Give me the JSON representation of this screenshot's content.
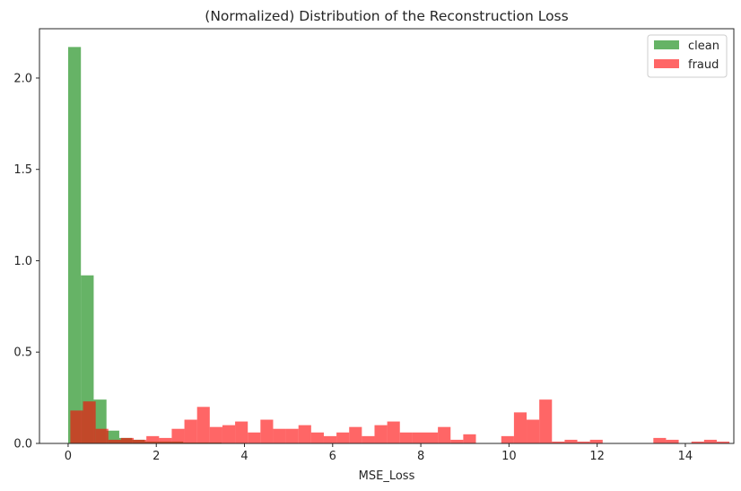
{
  "chart_data": {
    "type": "bar",
    "title": "(Normalized) Distribution of the Reconstruction Loss",
    "xlabel": "MSE_Loss",
    "ylabel": "",
    "xlim": [
      -0.65,
      15.1
    ],
    "ylim": [
      0,
      2.27
    ],
    "xticks": [
      0,
      2,
      4,
      6,
      8,
      10,
      12,
      14
    ],
    "xtick_labels": [
      "0",
      "2",
      "4",
      "6",
      "8",
      "10",
      "12",
      "14"
    ],
    "yticks": [
      0.0,
      0.5,
      1.0,
      1.5,
      2.0
    ],
    "ytick_labels": [
      "0.0",
      "0.5",
      "1.0",
      "1.5",
      "2.0"
    ],
    "grid": false,
    "legend_position": "top-right",
    "series": [
      {
        "name": "clean",
        "color": "#008000",
        "opacity": 0.6,
        "bin_start": 0.0,
        "bin_width": 0.29,
        "values": [
          2.17,
          0.92,
          0.24,
          0.07,
          0.03,
          0.02,
          0.01,
          0.01,
          0.01,
          0.005,
          0.005,
          0.005,
          0.003,
          0.003,
          0.002,
          0.002,
          0.002,
          0.001,
          0.001,
          0.001
        ]
      },
      {
        "name": "fraud",
        "color": "#ff0000",
        "opacity": 0.6,
        "bin_start": 0.05,
        "bin_width": 0.2875,
        "values": [
          0.18,
          0.23,
          0.08,
          0.02,
          0.03,
          0.02,
          0.04,
          0.03,
          0.08,
          0.13,
          0.2,
          0.09,
          0.1,
          0.12,
          0.06,
          0.13,
          0.08,
          0.08,
          0.1,
          0.06,
          0.04,
          0.06,
          0.09,
          0.04,
          0.1,
          0.12,
          0.06,
          0.06,
          0.06,
          0.09,
          0.02,
          0.05,
          0.0,
          0.0,
          0.04,
          0.17,
          0.13,
          0.24,
          0.01,
          0.02,
          0.01,
          0.02,
          0.0,
          0.0,
          0.0,
          0.0,
          0.03,
          0.02,
          0.0,
          0.01,
          0.02,
          0.01
        ]
      }
    ]
  }
}
